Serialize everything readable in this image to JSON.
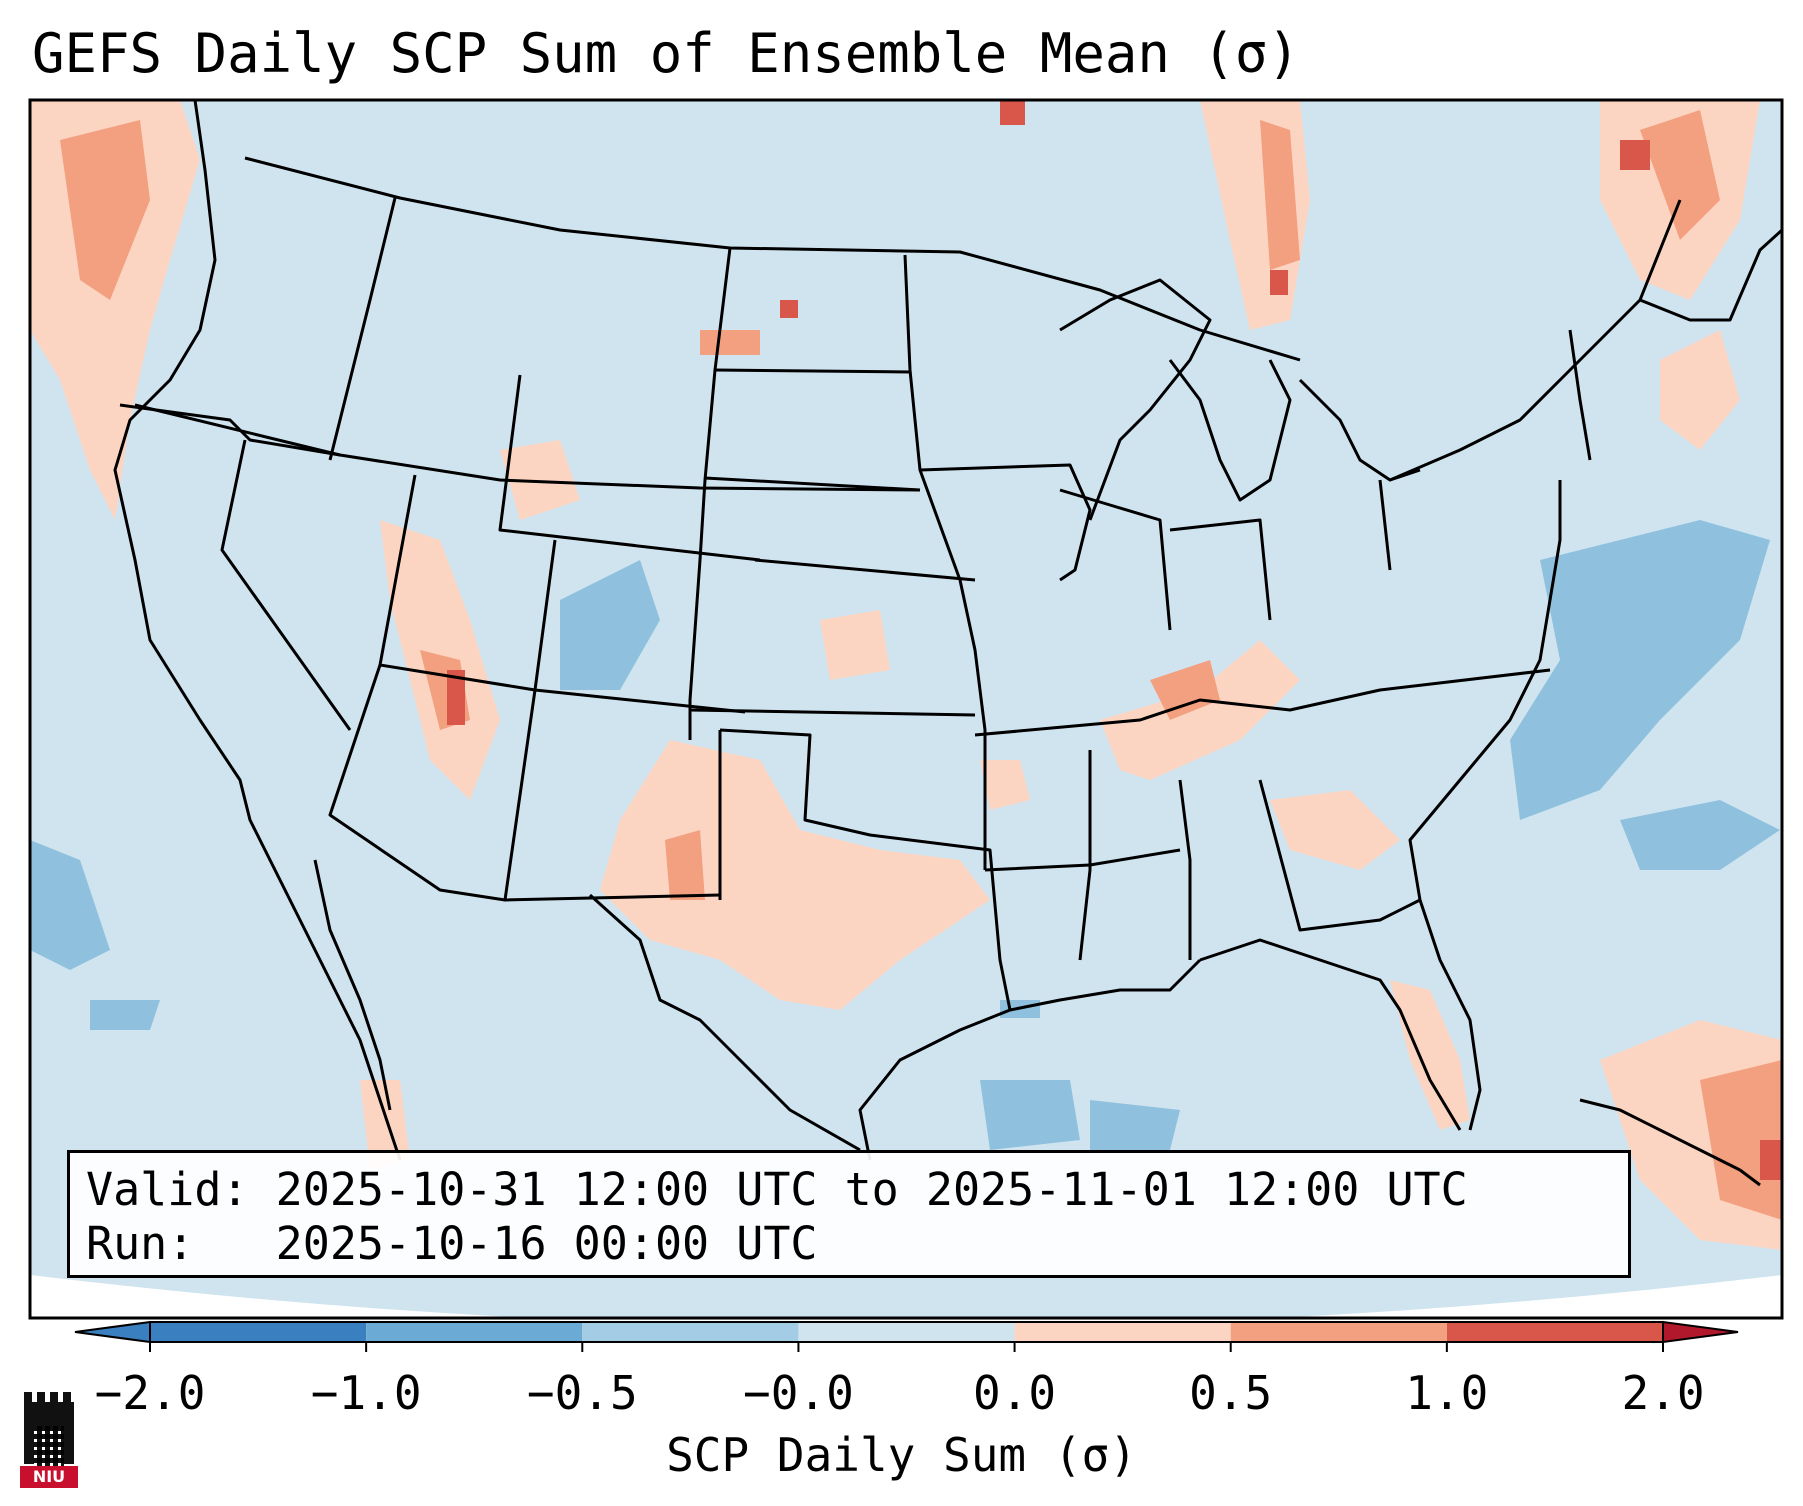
{
  "title": "GEFS Daily SCP Sum of Ensemble Mean (σ)",
  "info": {
    "valid_label": "Valid:",
    "valid_value": "2025-10-31 12:00 UTC to 2025-11-01 12:00 UTC",
    "run_label": "Run:",
    "run_value": "2025-10-16 00:00 UTC"
  },
  "colorbar": {
    "label": "SCP Daily Sum (σ)",
    "ticks": [
      "−2.0",
      "−1.0",
      "−0.5",
      "−0.0",
      "0.0",
      "0.5",
      "1.0",
      "2.0"
    ],
    "colors": [
      "#3a7fbf",
      "#6aaad4",
      "#a4cce5",
      "#d0e4f0",
      "#fcd5c2",
      "#f2a07f",
      "#d8574a",
      "#b2182b"
    ],
    "extend": "both"
  },
  "map": {
    "background_color": "#d0e4f0",
    "region": "Contiguous United States, northern Mexico, southern Canada, Gulf of Mexico"
  },
  "logo": {
    "text": "NIU"
  }
}
